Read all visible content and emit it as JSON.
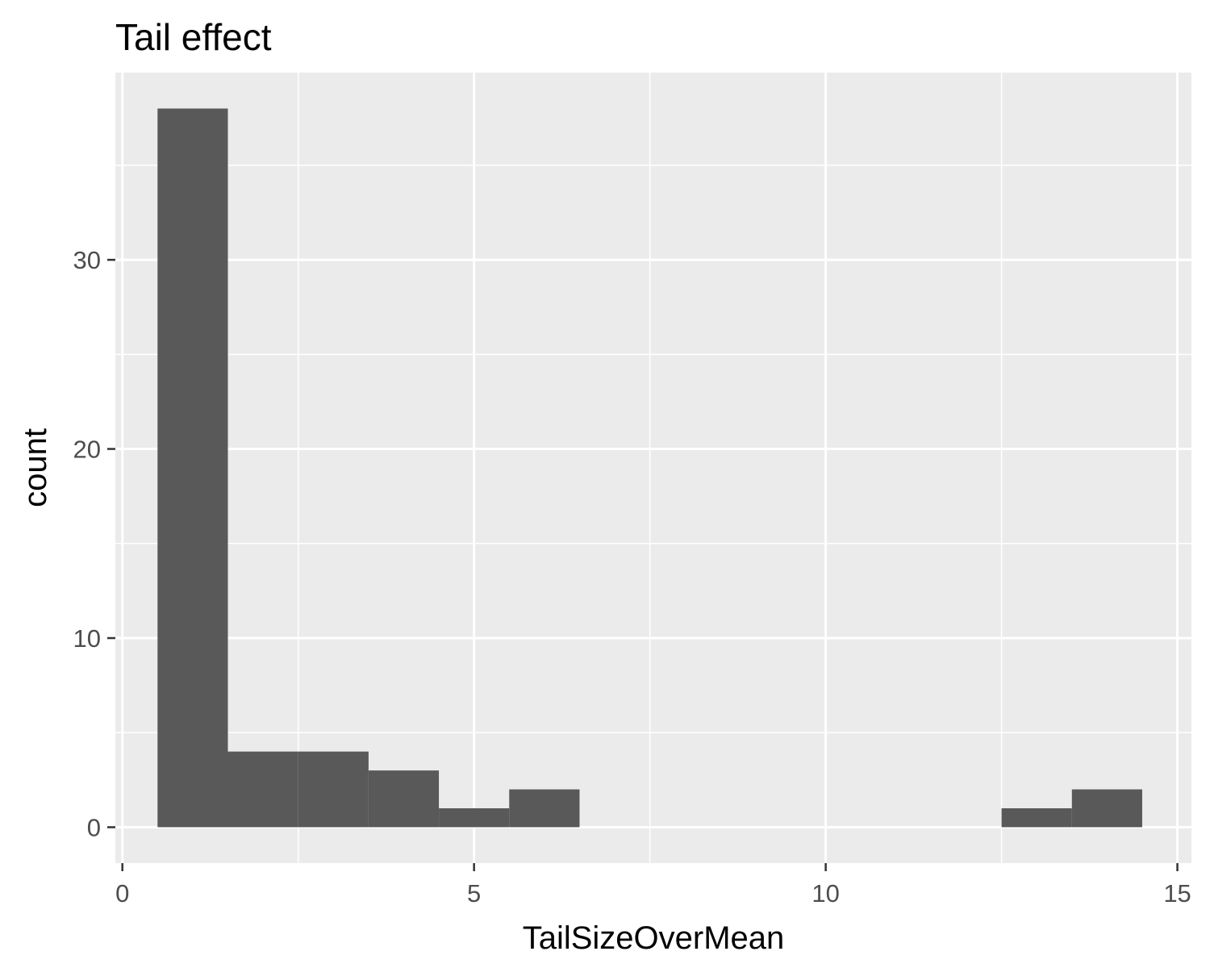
{
  "chart_data": {
    "type": "bar",
    "title": "Tail effect",
    "xlabel": "TailSizeOverMean",
    "ylabel": "count",
    "xlim": [
      -0.1,
      15.2
    ],
    "ylim": [
      -1.9,
      39.9
    ],
    "x_ticks": [
      0,
      5,
      10,
      15
    ],
    "y_ticks": [
      0,
      10,
      20,
      30
    ],
    "x_tick_labels": [
      "0",
      "5",
      "10",
      "15"
    ],
    "y_tick_labels": [
      "0",
      "10",
      "20",
      "30"
    ],
    "grid": true,
    "legend": "none",
    "bin_width": 1,
    "bins": [
      {
        "x_start": 0.5,
        "x_end": 1.5,
        "count": 38
      },
      {
        "x_start": 1.5,
        "x_end": 2.5,
        "count": 4
      },
      {
        "x_start": 2.5,
        "x_end": 3.5,
        "count": 4
      },
      {
        "x_start": 3.5,
        "x_end": 4.5,
        "count": 3
      },
      {
        "x_start": 4.5,
        "x_end": 5.5,
        "count": 1
      },
      {
        "x_start": 5.5,
        "x_end": 6.5,
        "count": 2
      },
      {
        "x_start": 12.5,
        "x_end": 13.5,
        "count": 1
      },
      {
        "x_start": 13.5,
        "x_end": 14.5,
        "count": 2
      }
    ],
    "colors": {
      "bar": "#595959",
      "panel": "#ebebeb",
      "grid": "#ffffff",
      "tick": "#333333"
    }
  }
}
